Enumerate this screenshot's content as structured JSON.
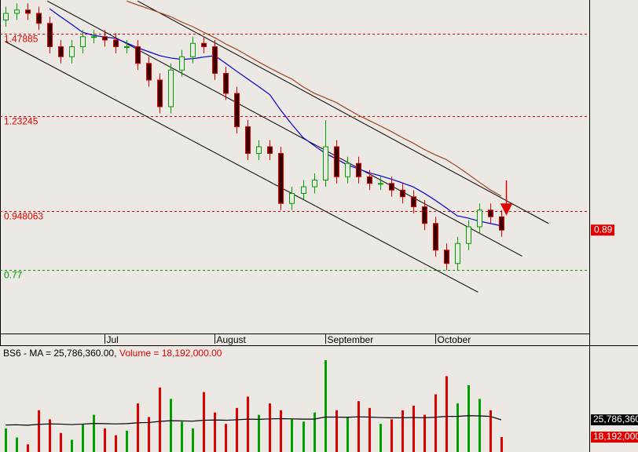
{
  "chart_data": {
    "type": "candlestick",
    "xlim": [
      -0.5,
      53
    ],
    "ylim": [
      0.58,
      1.58
    ],
    "categories": [
      null,
      null,
      null,
      null,
      null,
      null,
      null,
      null,
      null,
      "Jul",
      null,
      null,
      null,
      null,
      null,
      null,
      null,
      null,
      null,
      "August",
      null,
      null,
      null,
      null,
      null,
      null,
      null,
      null,
      null,
      "September",
      null,
      null,
      null,
      null,
      null,
      null,
      null,
      null,
      null,
      "October",
      null,
      null,
      null,
      null,
      null,
      null
    ],
    "open": [
      1.52,
      1.54,
      1.55,
      1.54,
      1.51,
      1.44,
      1.41,
      1.44,
      1.47,
      1.47,
      1.46,
      1.44,
      1.44,
      1.39,
      1.34,
      1.26,
      1.37,
      1.41,
      1.45,
      1.44,
      1.36,
      1.3,
      1.2,
      1.12,
      1.14,
      1.12,
      0.97,
      1.0,
      1.02,
      1.04,
      1.14,
      1.05,
      1.09,
      1.05,
      1.03,
      1.03,
      1.01,
      0.99,
      0.96,
      0.91,
      0.83,
      0.79,
      0.85,
      0.9,
      0.95,
      0.93
    ],
    "high": [
      1.56,
      1.57,
      1.57,
      1.56,
      1.53,
      1.46,
      1.46,
      1.49,
      1.49,
      1.49,
      1.48,
      1.46,
      1.46,
      1.41,
      1.36,
      1.39,
      1.43,
      1.47,
      1.47,
      1.46,
      1.38,
      1.32,
      1.22,
      1.16,
      1.16,
      1.14,
      1.02,
      1.04,
      1.06,
      1.22,
      1.16,
      1.11,
      1.11,
      1.07,
      1.05,
      1.05,
      1.03,
      1.01,
      0.98,
      0.93,
      0.85,
      0.87,
      0.92,
      0.97,
      0.97,
      0.95
    ],
    "low": [
      1.5,
      1.52,
      1.52,
      1.49,
      1.42,
      1.39,
      1.39,
      1.42,
      1.45,
      1.44,
      1.42,
      1.42,
      1.37,
      1.32,
      1.24,
      1.24,
      1.35,
      1.39,
      1.42,
      1.34,
      1.28,
      1.18,
      1.1,
      1.1,
      1.1,
      0.95,
      0.95,
      0.98,
      1.0,
      1.02,
      1.03,
      1.03,
      1.03,
      1.01,
      1.01,
      0.99,
      0.97,
      0.94,
      0.89,
      0.81,
      0.77,
      0.77,
      0.83,
      0.88,
      0.91,
      0.87
    ],
    "close": [
      1.54,
      1.55,
      1.54,
      1.51,
      1.44,
      1.41,
      1.44,
      1.47,
      1.47,
      1.46,
      1.44,
      1.44,
      1.39,
      1.34,
      1.26,
      1.37,
      1.41,
      1.45,
      1.44,
      1.36,
      1.3,
      1.2,
      1.12,
      1.14,
      1.12,
      0.97,
      1.0,
      1.02,
      1.04,
      1.14,
      1.05,
      1.09,
      1.05,
      1.03,
      1.03,
      1.01,
      0.99,
      0.96,
      0.91,
      0.83,
      0.79,
      0.85,
      0.9,
      0.95,
      0.93,
      0.89
    ],
    "up_color": "#00a000",
    "down_color": "#e00000",
    "ma_lines": [
      {
        "color": "#0000cc",
        "values": [
          null,
          null,
          null,
          null,
          1.554,
          1.53,
          1.507,
          1.483,
          1.474,
          1.469,
          1.465,
          1.451,
          1.437,
          1.425,
          1.413,
          1.406,
          1.402,
          1.404,
          1.409,
          1.413,
          1.39,
          1.366,
          1.343,
          1.32,
          1.296,
          1.249,
          1.207,
          1.168,
          1.144,
          1.121,
          1.104,
          1.086,
          1.074,
          1.062,
          1.053,
          1.043,
          1.032,
          1.02,
          1.001,
          0.98,
          0.957,
          0.933,
          0.926,
          0.917,
          0.91,
          0.903
        ]
      },
      {
        "color": "#a0461e",
        "values": [
          null,
          null,
          null,
          null,
          null,
          null,
          null,
          null,
          null,
          null,
          null,
          1.577,
          1.565,
          1.554,
          1.542,
          1.53,
          1.514,
          1.5,
          1.483,
          1.467,
          1.448,
          1.432,
          1.413,
          1.394,
          1.376,
          1.359,
          1.343,
          1.32,
          1.301,
          1.287,
          1.273,
          1.254,
          1.235,
          1.219,
          1.203,
          1.186,
          1.168,
          1.151,
          1.132,
          1.116,
          1.102,
          1.081,
          1.058,
          1.034,
          1.011,
          0.992
        ]
      }
    ],
    "trendlines": [
      {
        "x": [
          12,
          49.3
        ],
        "y": [
          1.577,
          0.91
        ]
      },
      {
        "x": [
          3.8,
          46.9
        ],
        "y": [
          1.577,
          0.812
        ]
      },
      {
        "x": [
          0,
          42.9
        ],
        "y": [
          1.455,
          0.704
        ]
      }
    ],
    "levels": [
      {
        "value": 1.47885,
        "color": "#e00000"
      },
      {
        "value": 1.23245,
        "color": "#e00000"
      },
      {
        "value": 0.948063,
        "color": "#e00000"
      },
      {
        "value": 0.77,
        "color": "#00a000"
      }
    ],
    "volume_legend": [
      "BS6 - MA = 25,786,360.00,",
      "Volume = 18,192,000.00"
    ],
    "vlim": [
      11630000,
      52370000
    ],
    "volume": [
      22000000,
      18000000,
      15000000,
      30000000,
      26000000,
      20000000,
      17000000,
      24000000,
      28000000,
      22000000,
      19000000,
      21000000,
      33000000,
      27000000,
      40000000,
      35000000,
      25000000,
      22000000,
      38000000,
      29000000,
      24000000,
      31000000,
      36000000,
      28000000,
      33000000,
      30000000,
      26000000,
      25000000,
      29000000,
      52000000,
      30000000,
      27000000,
      34000000,
      31000000,
      24000000,
      26000000,
      30000000,
      32000000,
      28000000,
      37000000,
      45000000,
      33000000,
      41000000,
      35000000,
      30000000,
      18192000
    ],
    "volume_ma": [
      23500000,
      23600000,
      23400000,
      23800000,
      24000000,
      23900000,
      23700000,
      23900000,
      24200000,
      24100000,
      24000000,
      24100000,
      24500000,
      24600000,
      25100000,
      25400000,
      25300000,
      25200000,
      25600000,
      25700000,
      25600000,
      25800000,
      26100000,
      26000000,
      26200000,
      26300000,
      26200000,
      26100000,
      26100000,
      27000000,
      27000000,
      26900000,
      27100000,
      27000000,
      26800000,
      26700000,
      26700000,
      26800000,
      26700000,
      26900000,
      27300000,
      27300000,
      27600000,
      27500000,
      27300000,
      25786360
    ],
    "volume_axis_labels": [
      {
        "value": 25786360,
        "label": "25,786,360"
      },
      {
        "value": 18192000,
        "label": "18,192,000"
      }
    ]
  }
}
